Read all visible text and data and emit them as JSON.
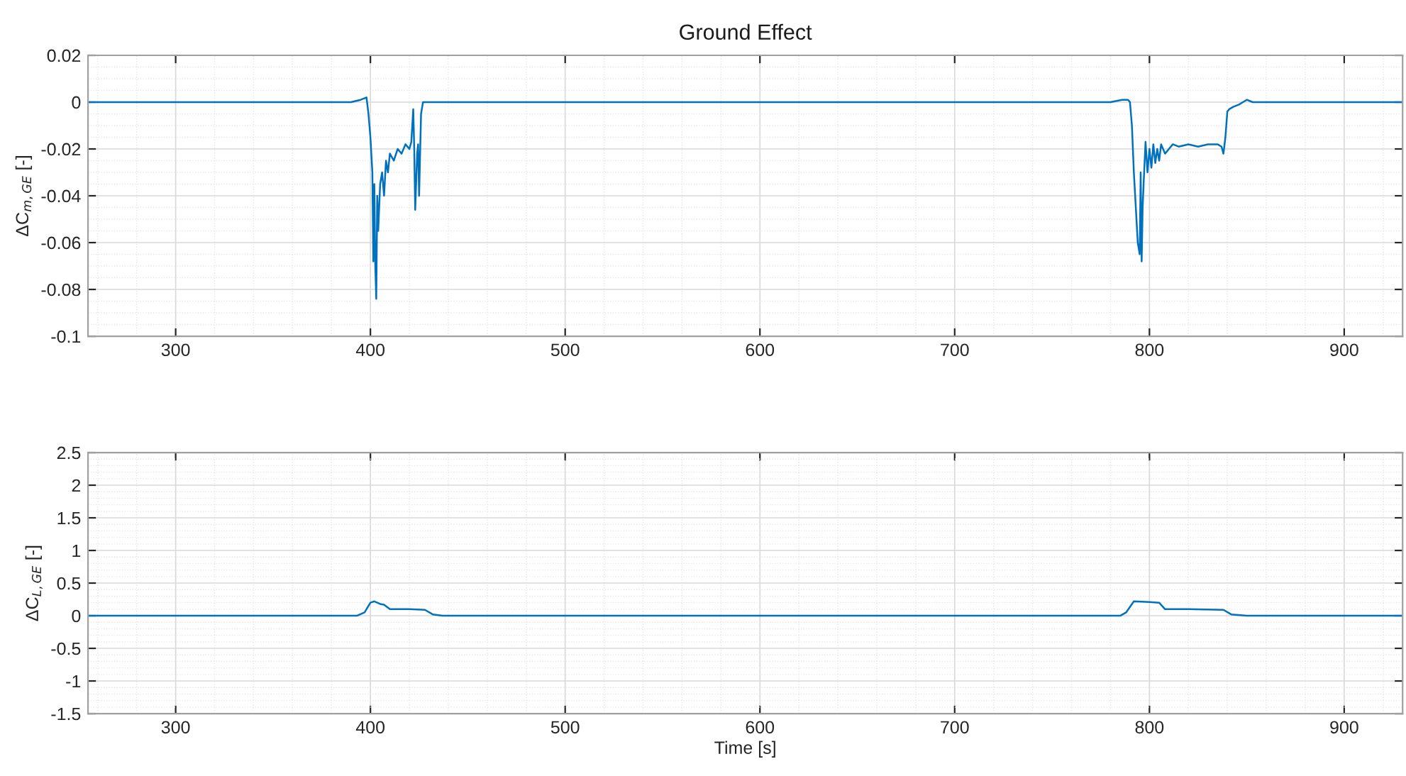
{
  "chart_data": [
    {
      "type": "line",
      "title": "Ground Effect",
      "ylabel": "ΔC$_{m,GE}$ [-]",
      "xlim": [
        255,
        930
      ],
      "ylim": [
        -0.1,
        0.02
      ],
      "xticks": [
        300,
        400,
        500,
        600,
        700,
        800,
        900
      ],
      "yticks": [
        -0.1,
        -0.08,
        -0.06,
        -0.04,
        -0.02,
        0,
        0.02
      ],
      "grid": true,
      "series": [
        {
          "color": "#0072bd",
          "x": [
            255,
            390,
            395,
            398,
            399,
            400,
            401,
            401.5,
            402,
            402.5,
            403,
            403.5,
            404,
            405,
            406,
            407,
            408,
            409,
            410,
            412,
            414,
            416,
            418,
            420,
            421,
            422,
            422.5,
            423,
            424,
            424.5,
            425,
            426,
            427,
            429,
            432,
            600,
            780,
            786,
            789,
            790,
            791,
            792,
            793,
            794,
            795,
            795.5,
            796,
            796.5,
            797,
            798,
            799,
            800,
            801,
            802,
            803,
            804,
            805,
            806,
            808,
            810,
            812,
            815,
            820,
            825,
            830,
            835,
            837,
            838,
            839,
            840,
            841,
            843,
            846,
            848,
            850,
            853,
            930
          ],
          "values": [
            0,
            0,
            0.001,
            0.002,
            -0.005,
            -0.015,
            -0.03,
            -0.068,
            -0.035,
            -0.07,
            -0.084,
            -0.04,
            -0.055,
            -0.035,
            -0.03,
            -0.04,
            -0.025,
            -0.03,
            -0.022,
            -0.025,
            -0.02,
            -0.022,
            -0.018,
            -0.02,
            -0.017,
            -0.003,
            -0.02,
            -0.046,
            -0.022,
            -0.018,
            -0.04,
            -0.005,
            0,
            0,
            0,
            0,
            0,
            0.001,
            0.001,
            0,
            -0.01,
            -0.03,
            -0.045,
            -0.06,
            -0.065,
            -0.03,
            -0.068,
            -0.045,
            -0.035,
            -0.017,
            -0.03,
            -0.02,
            -0.028,
            -0.018,
            -0.026,
            -0.02,
            -0.025,
            -0.018,
            -0.022,
            -0.02,
            -0.018,
            -0.019,
            -0.018,
            -0.019,
            -0.018,
            -0.018,
            -0.019,
            -0.022,
            -0.015,
            -0.004,
            -0.003,
            -0.002,
            -0.001,
            0,
            0.001,
            0,
            0
          ]
        }
      ]
    },
    {
      "type": "line",
      "xlabel": "Time [s]",
      "ylabel": "ΔC$_{L,GE}$ [-]",
      "xlim": [
        255,
        930
      ],
      "ylim": [
        -1.5,
        2.5
      ],
      "xticks": [
        300,
        400,
        500,
        600,
        700,
        800,
        900
      ],
      "yticks": [
        -1.5,
        -1,
        -0.5,
        0,
        0.5,
        1,
        1.5,
        2,
        2.5
      ],
      "grid": true,
      "series": [
        {
          "color": "#0072bd",
          "x": [
            255,
            393,
            397,
            400,
            402,
            405,
            407,
            410,
            420,
            428,
            432,
            437,
            600,
            785,
            788,
            792,
            800,
            805,
            808,
            820,
            838,
            842,
            850,
            930
          ],
          "values": [
            0,
            0,
            0.05,
            0.2,
            0.22,
            0.18,
            0.17,
            0.1,
            0.1,
            0.09,
            0.02,
            0,
            0,
            0,
            0.05,
            0.22,
            0.21,
            0.2,
            0.1,
            0.1,
            0.09,
            0.02,
            0,
            0
          ]
        }
      ]
    }
  ]
}
